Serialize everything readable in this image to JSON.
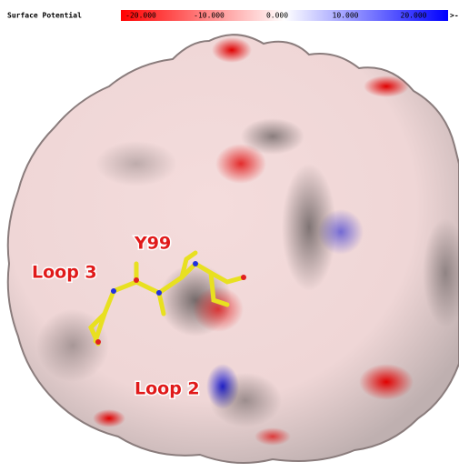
{
  "header": {
    "title": "Surface Potential"
  },
  "colorbar": {
    "labels": [
      "-20.000",
      "-10.000",
      "0.000",
      "10.000",
      "20.000"
    ],
    "overflow_label": ">-"
  },
  "annotations": [
    "Y99",
    "Loop 3",
    "Loop 2"
  ]
}
